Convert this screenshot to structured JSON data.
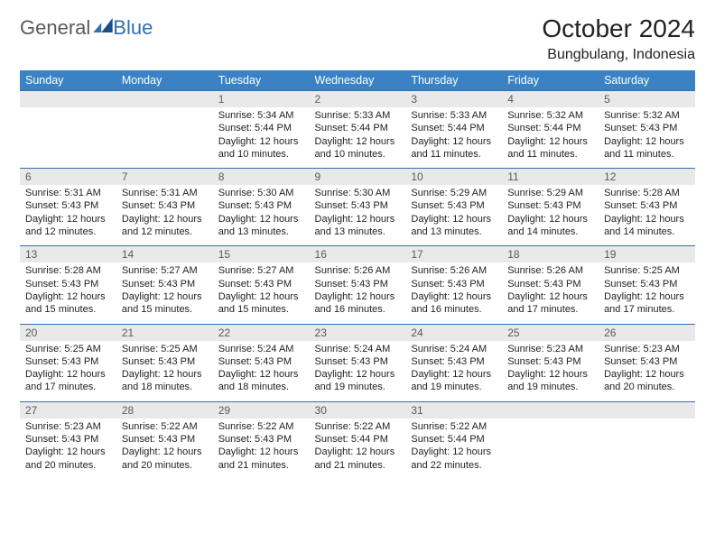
{
  "header": {
    "logo_general": "General",
    "logo_blue": "Blue",
    "month_title": "October 2024",
    "location": "Bungbulang, Indonesia"
  },
  "colors": {
    "header_bg": "#3a82c4",
    "header_text": "#ffffff",
    "daynum_bg": "#e9e9e9",
    "daynum_text": "#5a5a5a",
    "rule": "#2f6fb0",
    "body_text": "#222222",
    "logo_gray": "#5a5a5a",
    "logo_blue": "#2f6fb0"
  },
  "weekdays": [
    "Sunday",
    "Monday",
    "Tuesday",
    "Wednesday",
    "Thursday",
    "Friday",
    "Saturday"
  ],
  "weeks": [
    [
      null,
      null,
      {
        "day": "1",
        "sunrise": "Sunrise: 5:34 AM",
        "sunset": "Sunset: 5:44 PM",
        "daylight": "Daylight: 12 hours and 10 minutes."
      },
      {
        "day": "2",
        "sunrise": "Sunrise: 5:33 AM",
        "sunset": "Sunset: 5:44 PM",
        "daylight": "Daylight: 12 hours and 10 minutes."
      },
      {
        "day": "3",
        "sunrise": "Sunrise: 5:33 AM",
        "sunset": "Sunset: 5:44 PM",
        "daylight": "Daylight: 12 hours and 11 minutes."
      },
      {
        "day": "4",
        "sunrise": "Sunrise: 5:32 AM",
        "sunset": "Sunset: 5:44 PM",
        "daylight": "Daylight: 12 hours and 11 minutes."
      },
      {
        "day": "5",
        "sunrise": "Sunrise: 5:32 AM",
        "sunset": "Sunset: 5:43 PM",
        "daylight": "Daylight: 12 hours and 11 minutes."
      }
    ],
    [
      {
        "day": "6",
        "sunrise": "Sunrise: 5:31 AM",
        "sunset": "Sunset: 5:43 PM",
        "daylight": "Daylight: 12 hours and 12 minutes."
      },
      {
        "day": "7",
        "sunrise": "Sunrise: 5:31 AM",
        "sunset": "Sunset: 5:43 PM",
        "daylight": "Daylight: 12 hours and 12 minutes."
      },
      {
        "day": "8",
        "sunrise": "Sunrise: 5:30 AM",
        "sunset": "Sunset: 5:43 PM",
        "daylight": "Daylight: 12 hours and 13 minutes."
      },
      {
        "day": "9",
        "sunrise": "Sunrise: 5:30 AM",
        "sunset": "Sunset: 5:43 PM",
        "daylight": "Daylight: 12 hours and 13 minutes."
      },
      {
        "day": "10",
        "sunrise": "Sunrise: 5:29 AM",
        "sunset": "Sunset: 5:43 PM",
        "daylight": "Daylight: 12 hours and 13 minutes."
      },
      {
        "day": "11",
        "sunrise": "Sunrise: 5:29 AM",
        "sunset": "Sunset: 5:43 PM",
        "daylight": "Daylight: 12 hours and 14 minutes."
      },
      {
        "day": "12",
        "sunrise": "Sunrise: 5:28 AM",
        "sunset": "Sunset: 5:43 PM",
        "daylight": "Daylight: 12 hours and 14 minutes."
      }
    ],
    [
      {
        "day": "13",
        "sunrise": "Sunrise: 5:28 AM",
        "sunset": "Sunset: 5:43 PM",
        "daylight": "Daylight: 12 hours and 15 minutes."
      },
      {
        "day": "14",
        "sunrise": "Sunrise: 5:27 AM",
        "sunset": "Sunset: 5:43 PM",
        "daylight": "Daylight: 12 hours and 15 minutes."
      },
      {
        "day": "15",
        "sunrise": "Sunrise: 5:27 AM",
        "sunset": "Sunset: 5:43 PM",
        "daylight": "Daylight: 12 hours and 15 minutes."
      },
      {
        "day": "16",
        "sunrise": "Sunrise: 5:26 AM",
        "sunset": "Sunset: 5:43 PM",
        "daylight": "Daylight: 12 hours and 16 minutes."
      },
      {
        "day": "17",
        "sunrise": "Sunrise: 5:26 AM",
        "sunset": "Sunset: 5:43 PM",
        "daylight": "Daylight: 12 hours and 16 minutes."
      },
      {
        "day": "18",
        "sunrise": "Sunrise: 5:26 AM",
        "sunset": "Sunset: 5:43 PM",
        "daylight": "Daylight: 12 hours and 17 minutes."
      },
      {
        "day": "19",
        "sunrise": "Sunrise: 5:25 AM",
        "sunset": "Sunset: 5:43 PM",
        "daylight": "Daylight: 12 hours and 17 minutes."
      }
    ],
    [
      {
        "day": "20",
        "sunrise": "Sunrise: 5:25 AM",
        "sunset": "Sunset: 5:43 PM",
        "daylight": "Daylight: 12 hours and 17 minutes."
      },
      {
        "day": "21",
        "sunrise": "Sunrise: 5:25 AM",
        "sunset": "Sunset: 5:43 PM",
        "daylight": "Daylight: 12 hours and 18 minutes."
      },
      {
        "day": "22",
        "sunrise": "Sunrise: 5:24 AM",
        "sunset": "Sunset: 5:43 PM",
        "daylight": "Daylight: 12 hours and 18 minutes."
      },
      {
        "day": "23",
        "sunrise": "Sunrise: 5:24 AM",
        "sunset": "Sunset: 5:43 PM",
        "daylight": "Daylight: 12 hours and 19 minutes."
      },
      {
        "day": "24",
        "sunrise": "Sunrise: 5:24 AM",
        "sunset": "Sunset: 5:43 PM",
        "daylight": "Daylight: 12 hours and 19 minutes."
      },
      {
        "day": "25",
        "sunrise": "Sunrise: 5:23 AM",
        "sunset": "Sunset: 5:43 PM",
        "daylight": "Daylight: 12 hours and 19 minutes."
      },
      {
        "day": "26",
        "sunrise": "Sunrise: 5:23 AM",
        "sunset": "Sunset: 5:43 PM",
        "daylight": "Daylight: 12 hours and 20 minutes."
      }
    ],
    [
      {
        "day": "27",
        "sunrise": "Sunrise: 5:23 AM",
        "sunset": "Sunset: 5:43 PM",
        "daylight": "Daylight: 12 hours and 20 minutes."
      },
      {
        "day": "28",
        "sunrise": "Sunrise: 5:22 AM",
        "sunset": "Sunset: 5:43 PM",
        "daylight": "Daylight: 12 hours and 20 minutes."
      },
      {
        "day": "29",
        "sunrise": "Sunrise: 5:22 AM",
        "sunset": "Sunset: 5:43 PM",
        "daylight": "Daylight: 12 hours and 21 minutes."
      },
      {
        "day": "30",
        "sunrise": "Sunrise: 5:22 AM",
        "sunset": "Sunset: 5:44 PM",
        "daylight": "Daylight: 12 hours and 21 minutes."
      },
      {
        "day": "31",
        "sunrise": "Sunrise: 5:22 AM",
        "sunset": "Sunset: 5:44 PM",
        "daylight": "Daylight: 12 hours and 22 minutes."
      },
      null,
      null
    ]
  ]
}
